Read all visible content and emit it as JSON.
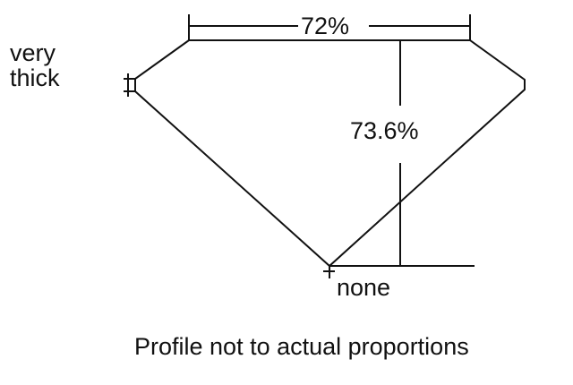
{
  "diagram": {
    "table_label": "72%",
    "depth_label": "73.6%",
    "girdle_label": [
      "very",
      "thick"
    ],
    "culet_label": "none",
    "caption": "Profile not to actual proportions",
    "line_color": "#111111"
  }
}
